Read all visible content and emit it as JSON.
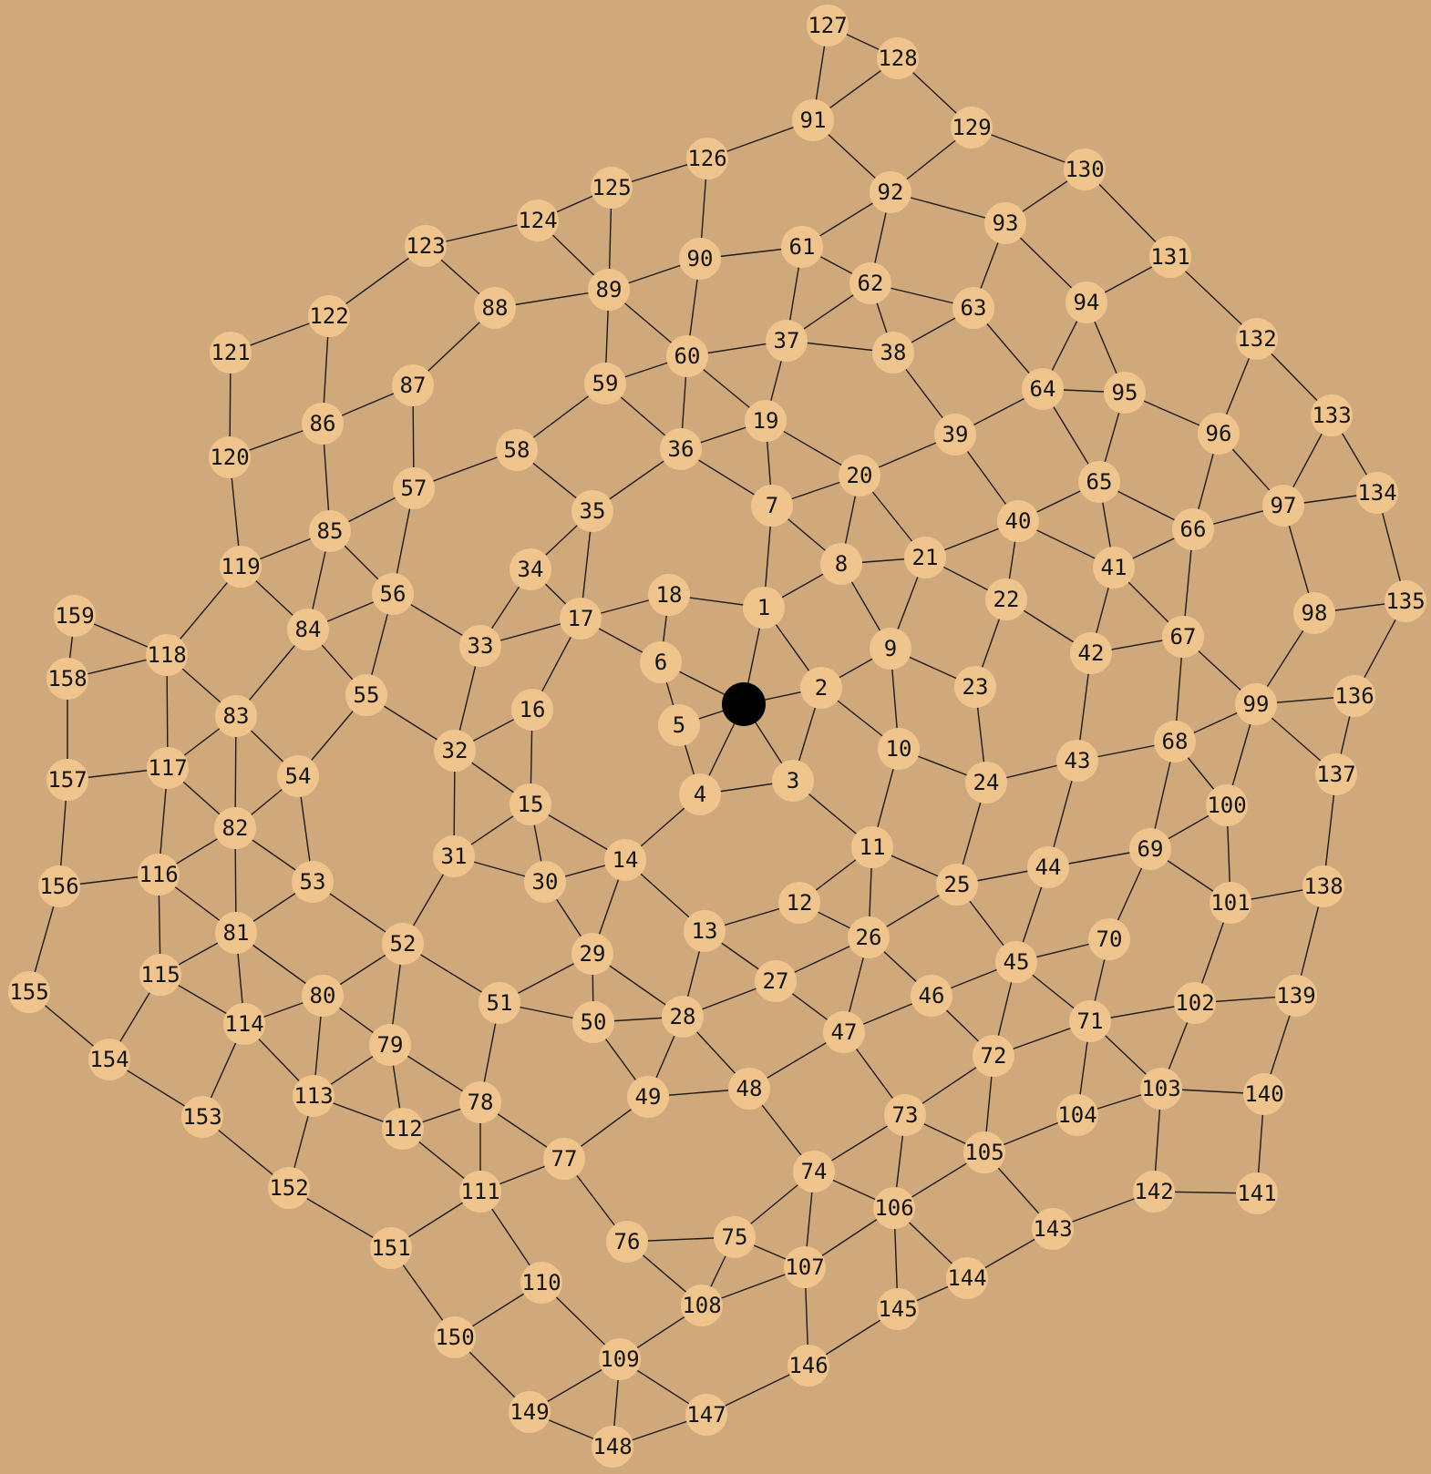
{
  "colors": {
    "background": "#cfa97c",
    "node": "#f0c48d",
    "edge": "#1f1a14",
    "label": "#141414",
    "token": "#000000"
  },
  "nodes": [
    "1",
    "2",
    "3",
    "4",
    "5",
    "6",
    "7",
    "8",
    "9",
    "10",
    "11",
    "12",
    "13",
    "14",
    "15",
    "16",
    "17",
    "18",
    "19",
    "20",
    "21",
    "22",
    "23",
    "24",
    "25",
    "26",
    "27",
    "28",
    "29",
    "30",
    "31",
    "32",
    "33",
    "34",
    "35",
    "36",
    "37",
    "38",
    "39",
    "40",
    "41",
    "42",
    "43",
    "44",
    "45",
    "46",
    "47",
    "48",
    "49",
    "50",
    "51",
    "52",
    "53",
    "54",
    "55",
    "56",
    "57",
    "58",
    "59",
    "60",
    "61",
    "62",
    "63",
    "64",
    "65",
    "66",
    "67",
    "68",
    "69",
    "70",
    "71",
    "72",
    "73",
    "74",
    "75",
    "76",
    "77",
    "78",
    "79",
    "80",
    "81",
    "82",
    "83",
    "84",
    "85",
    "86",
    "87",
    "88",
    "89",
    "90",
    "91",
    "92",
    "93",
    "94",
    "95",
    "96",
    "97",
    "98",
    "99",
    "100",
    "101",
    "102",
    "103",
    "104",
    "105",
    "106",
    "107",
    "108",
    "109",
    "110",
    "111",
    "112",
    "113",
    "114",
    "115",
    "116",
    "117",
    "118",
    "119",
    "120",
    "121",
    "122",
    "123",
    "124",
    "125",
    "126",
    "127",
    "128",
    "129",
    "130",
    "131",
    "132",
    "133",
    "134",
    "135",
    "136",
    "137",
    "138",
    "139",
    "140",
    "141",
    "142",
    "143",
    "144",
    "145",
    "146",
    "147",
    "148",
    "149",
    "150",
    "151",
    "152",
    "153",
    "154",
    "155",
    "156",
    "157",
    "158",
    "159"
  ],
  "edges": [
    [
      "P",
      "1"
    ],
    [
      "P",
      "2"
    ],
    [
      "P",
      "3"
    ],
    [
      "P",
      "4"
    ],
    [
      "P",
      "5"
    ],
    [
      "P",
      "6"
    ],
    [
      "1",
      "2"
    ],
    [
      "1",
      "7"
    ],
    [
      "1",
      "8"
    ],
    [
      "1",
      "18"
    ],
    [
      "2",
      "9"
    ],
    [
      "2",
      "10"
    ],
    [
      "2",
      "3"
    ],
    [
      "3",
      "4"
    ],
    [
      "3",
      "11"
    ],
    [
      "4",
      "5"
    ],
    [
      "4",
      "14"
    ],
    [
      "5",
      "6"
    ],
    [
      "6",
      "17"
    ],
    [
      "6",
      "18"
    ],
    [
      "7",
      "8"
    ],
    [
      "7",
      "19"
    ],
    [
      "7",
      "20"
    ],
    [
      "7",
      "36"
    ],
    [
      "8",
      "9"
    ],
    [
      "8",
      "20"
    ],
    [
      "8",
      "21"
    ],
    [
      "9",
      "10"
    ],
    [
      "9",
      "21"
    ],
    [
      "9",
      "23"
    ],
    [
      "10",
      "11"
    ],
    [
      "10",
      "24"
    ],
    [
      "11",
      "12"
    ],
    [
      "11",
      "25"
    ],
    [
      "11",
      "26"
    ],
    [
      "12",
      "13"
    ],
    [
      "12",
      "26"
    ],
    [
      "13",
      "14"
    ],
    [
      "13",
      "27"
    ],
    [
      "13",
      "28"
    ],
    [
      "14",
      "15"
    ],
    [
      "14",
      "29"
    ],
    [
      "14",
      "30"
    ],
    [
      "15",
      "16"
    ],
    [
      "15",
      "30"
    ],
    [
      "15",
      "31"
    ],
    [
      "15",
      "32"
    ],
    [
      "16",
      "17"
    ],
    [
      "16",
      "32"
    ],
    [
      "17",
      "18"
    ],
    [
      "17",
      "33"
    ],
    [
      "17",
      "34"
    ],
    [
      "17",
      "35"
    ],
    [
      "19",
      "20"
    ],
    [
      "19",
      "36"
    ],
    [
      "19",
      "37"
    ],
    [
      "19",
      "60"
    ],
    [
      "20",
      "21"
    ],
    [
      "20",
      "39"
    ],
    [
      "21",
      "22"
    ],
    [
      "21",
      "40"
    ],
    [
      "22",
      "23"
    ],
    [
      "22",
      "40"
    ],
    [
      "22",
      "42"
    ],
    [
      "23",
      "24"
    ],
    [
      "24",
      "25"
    ],
    [
      "24",
      "43"
    ],
    [
      "25",
      "26"
    ],
    [
      "25",
      "44"
    ],
    [
      "25",
      "45"
    ],
    [
      "26",
      "27"
    ],
    [
      "26",
      "46"
    ],
    [
      "26",
      "47"
    ],
    [
      "27",
      "28"
    ],
    [
      "27",
      "47"
    ],
    [
      "28",
      "29"
    ],
    [
      "28",
      "48"
    ],
    [
      "28",
      "49"
    ],
    [
      "28",
      "50"
    ],
    [
      "29",
      "30"
    ],
    [
      "29",
      "50"
    ],
    [
      "29",
      "51"
    ],
    [
      "30",
      "31"
    ],
    [
      "31",
      "32"
    ],
    [
      "31",
      "52"
    ],
    [
      "32",
      "33"
    ],
    [
      "32",
      "55"
    ],
    [
      "33",
      "34"
    ],
    [
      "33",
      "56"
    ],
    [
      "34",
      "35"
    ],
    [
      "35",
      "36"
    ],
    [
      "35",
      "58"
    ],
    [
      "36",
      "59"
    ],
    [
      "36",
      "60"
    ],
    [
      "37",
      "38"
    ],
    [
      "37",
      "60"
    ],
    [
      "37",
      "61"
    ],
    [
      "37",
      "62"
    ],
    [
      "38",
      "39"
    ],
    [
      "38",
      "62"
    ],
    [
      "38",
      "63"
    ],
    [
      "39",
      "40"
    ],
    [
      "39",
      "64"
    ],
    [
      "40",
      "41"
    ],
    [
      "40",
      "65"
    ],
    [
      "41",
      "42"
    ],
    [
      "41",
      "65"
    ],
    [
      "41",
      "66"
    ],
    [
      "41",
      "67"
    ],
    [
      "42",
      "43"
    ],
    [
      "42",
      "67"
    ],
    [
      "43",
      "44"
    ],
    [
      "43",
      "68"
    ],
    [
      "44",
      "45"
    ],
    [
      "44",
      "69"
    ],
    [
      "45",
      "46"
    ],
    [
      "45",
      "70"
    ],
    [
      "45",
      "71"
    ],
    [
      "45",
      "72"
    ],
    [
      "46",
      "47"
    ],
    [
      "46",
      "72"
    ],
    [
      "47",
      "48"
    ],
    [
      "47",
      "73"
    ],
    [
      "48",
      "49"
    ],
    [
      "48",
      "74"
    ],
    [
      "49",
      "50"
    ],
    [
      "49",
      "77"
    ],
    [
      "50",
      "51"
    ],
    [
      "51",
      "52"
    ],
    [
      "51",
      "78"
    ],
    [
      "52",
      "53"
    ],
    [
      "52",
      "79"
    ],
    [
      "52",
      "80"
    ],
    [
      "53",
      "54"
    ],
    [
      "53",
      "81"
    ],
    [
      "53",
      "82"
    ],
    [
      "54",
      "55"
    ],
    [
      "54",
      "82"
    ],
    [
      "54",
      "83"
    ],
    [
      "55",
      "56"
    ],
    [
      "55",
      "84"
    ],
    [
      "56",
      "57"
    ],
    [
      "56",
      "84"
    ],
    [
      "56",
      "85"
    ],
    [
      "57",
      "58"
    ],
    [
      "57",
      "85"
    ],
    [
      "57",
      "87"
    ],
    [
      "58",
      "59"
    ],
    [
      "59",
      "60"
    ],
    [
      "59",
      "89"
    ],
    [
      "60",
      "89"
    ],
    [
      "60",
      "90"
    ],
    [
      "61",
      "62"
    ],
    [
      "61",
      "90"
    ],
    [
      "61",
      "92"
    ],
    [
      "62",
      "63"
    ],
    [
      "62",
      "92"
    ],
    [
      "63",
      "64"
    ],
    [
      "63",
      "93"
    ],
    [
      "64",
      "65"
    ],
    [
      "64",
      "94"
    ],
    [
      "64",
      "95"
    ],
    [
      "65",
      "66"
    ],
    [
      "65",
      "95"
    ],
    [
      "66",
      "67"
    ],
    [
      "66",
      "96"
    ],
    [
      "66",
      "97"
    ],
    [
      "67",
      "68"
    ],
    [
      "67",
      "99"
    ],
    [
      "68",
      "69"
    ],
    [
      "68",
      "99"
    ],
    [
      "68",
      "100"
    ],
    [
      "69",
      "70"
    ],
    [
      "69",
      "100"
    ],
    [
      "69",
      "101"
    ],
    [
      "70",
      "71"
    ],
    [
      "71",
      "72"
    ],
    [
      "71",
      "102"
    ],
    [
      "71",
      "103"
    ],
    [
      "71",
      "104"
    ],
    [
      "72",
      "73"
    ],
    [
      "72",
      "105"
    ],
    [
      "73",
      "74"
    ],
    [
      "73",
      "105"
    ],
    [
      "73",
      "106"
    ],
    [
      "74",
      "75"
    ],
    [
      "74",
      "106"
    ],
    [
      "74",
      "107"
    ],
    [
      "75",
      "76"
    ],
    [
      "75",
      "107"
    ],
    [
      "75",
      "108"
    ],
    [
      "76",
      "77"
    ],
    [
      "76",
      "108"
    ],
    [
      "77",
      "78"
    ],
    [
      "77",
      "111"
    ],
    [
      "78",
      "79"
    ],
    [
      "78",
      "111"
    ],
    [
      "78",
      "112"
    ],
    [
      "79",
      "80"
    ],
    [
      "79",
      "112"
    ],
    [
      "79",
      "113"
    ],
    [
      "80",
      "81"
    ],
    [
      "80",
      "113"
    ],
    [
      "80",
      "114"
    ],
    [
      "81",
      "82"
    ],
    [
      "81",
      "114"
    ],
    [
      "81",
      "115"
    ],
    [
      "81",
      "116"
    ],
    [
      "82",
      "83"
    ],
    [
      "82",
      "116"
    ],
    [
      "82",
      "117"
    ],
    [
      "83",
      "84"
    ],
    [
      "83",
      "117"
    ],
    [
      "83",
      "118"
    ],
    [
      "84",
      "85"
    ],
    [
      "84",
      "119"
    ],
    [
      "85",
      "86"
    ],
    [
      "85",
      "119"
    ],
    [
      "86",
      "87"
    ],
    [
      "86",
      "120"
    ],
    [
      "86",
      "122"
    ],
    [
      "87",
      "88"
    ],
    [
      "88",
      "89"
    ],
    [
      "88",
      "123"
    ],
    [
      "89",
      "90"
    ],
    [
      "89",
      "124"
    ],
    [
      "89",
      "125"
    ],
    [
      "90",
      "126"
    ],
    [
      "91",
      "92"
    ],
    [
      "91",
      "126"
    ],
    [
      "91",
      "127"
    ],
    [
      "91",
      "128"
    ],
    [
      "92",
      "93"
    ],
    [
      "92",
      "129"
    ],
    [
      "93",
      "94"
    ],
    [
      "93",
      "130"
    ],
    [
      "94",
      "95"
    ],
    [
      "94",
      "131"
    ],
    [
      "95",
      "96"
    ],
    [
      "96",
      "97"
    ],
    [
      "96",
      "132"
    ],
    [
      "97",
      "98"
    ],
    [
      "97",
      "133"
    ],
    [
      "97",
      "134"
    ],
    [
      "98",
      "99"
    ],
    [
      "98",
      "135"
    ],
    [
      "99",
      "100"
    ],
    [
      "99",
      "136"
    ],
    [
      "99",
      "137"
    ],
    [
      "100",
      "101"
    ],
    [
      "101",
      "102"
    ],
    [
      "101",
      "138"
    ],
    [
      "102",
      "103"
    ],
    [
      "102",
      "139"
    ],
    [
      "103",
      "104"
    ],
    [
      "103",
      "140"
    ],
    [
      "103",
      "142"
    ],
    [
      "104",
      "105"
    ],
    [
      "105",
      "106"
    ],
    [
      "105",
      "143"
    ],
    [
      "106",
      "107"
    ],
    [
      "106",
      "144"
    ],
    [
      "106",
      "145"
    ],
    [
      "107",
      "108"
    ],
    [
      "107",
      "146"
    ],
    [
      "108",
      "109"
    ],
    [
      "109",
      "110"
    ],
    [
      "109",
      "147"
    ],
    [
      "109",
      "148"
    ],
    [
      "109",
      "149"
    ],
    [
      "110",
      "111"
    ],
    [
      "110",
      "150"
    ],
    [
      "111",
      "112"
    ],
    [
      "111",
      "151"
    ],
    [
      "112",
      "113"
    ],
    [
      "113",
      "114"
    ],
    [
      "113",
      "152"
    ],
    [
      "114",
      "115"
    ],
    [
      "114",
      "153"
    ],
    [
      "115",
      "116"
    ],
    [
      "115",
      "154"
    ],
    [
      "116",
      "117"
    ],
    [
      "116",
      "156"
    ],
    [
      "117",
      "118"
    ],
    [
      "117",
      "157"
    ],
    [
      "118",
      "119"
    ],
    [
      "118",
      "158"
    ],
    [
      "118",
      "159"
    ],
    [
      "119",
      "120"
    ],
    [
      "120",
      "121"
    ],
    [
      "121",
      "122"
    ],
    [
      "122",
      "123"
    ],
    [
      "123",
      "124"
    ],
    [
      "124",
      "125"
    ],
    [
      "125",
      "126"
    ],
    [
      "127",
      "128"
    ],
    [
      "128",
      "129"
    ],
    [
      "129",
      "130"
    ],
    [
      "130",
      "131"
    ],
    [
      "131",
      "132"
    ],
    [
      "132",
      "133"
    ],
    [
      "133",
      "134"
    ],
    [
      "134",
      "135"
    ],
    [
      "135",
      "136"
    ],
    [
      "136",
      "137"
    ],
    [
      "137",
      "138"
    ],
    [
      "138",
      "139"
    ],
    [
      "139",
      "140"
    ],
    [
      "140",
      "141"
    ],
    [
      "141",
      "142"
    ],
    [
      "142",
      "143"
    ],
    [
      "143",
      "144"
    ],
    [
      "144",
      "145"
    ],
    [
      "145",
      "146"
    ],
    [
      "146",
      "147"
    ],
    [
      "147",
      "148"
    ],
    [
      "148",
      "149"
    ],
    [
      "149",
      "150"
    ],
    [
      "150",
      "151"
    ],
    [
      "151",
      "152"
    ],
    [
      "152",
      "153"
    ],
    [
      "153",
      "154"
    ],
    [
      "154",
      "155"
    ],
    [
      "155",
      "156"
    ],
    [
      "156",
      "157"
    ],
    [
      "157",
      "158"
    ],
    [
      "158",
      "159"
    ]
  ]
}
